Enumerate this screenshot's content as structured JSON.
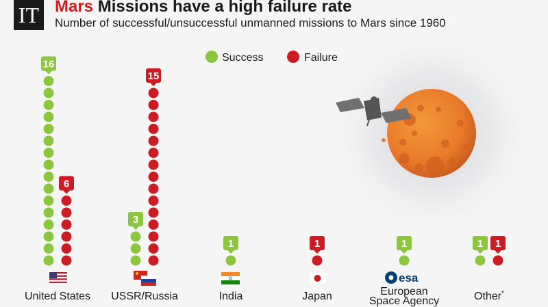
{
  "header": {
    "logo": "IT",
    "title_highlight": "Mars",
    "title_rest": " Missions have a high failure rate",
    "subtitle": "Number of successful/unsuccessful unmanned missions to Mars since 1960"
  },
  "colors": {
    "success": "#8cc63f",
    "failure": "#cc1b22",
    "title_highlight": "#d71920"
  },
  "legend": {
    "success": "Success",
    "failure": "Failure"
  },
  "chart_data": {
    "type": "dot-column",
    "title": "Mars Missions have a high failure rate",
    "subtitle": "Number of successful/unsuccessful unmanned missions to Mars since 1960",
    "categories": [
      "United States",
      "USSR/Russia",
      "India",
      "Japan",
      "European Space Agency",
      "Other*"
    ],
    "series": [
      {
        "name": "Success",
        "color": "#8cc63f",
        "values": [
          16,
          3,
          1,
          0,
          1,
          1
        ]
      },
      {
        "name": "Failure",
        "color": "#cc1b22",
        "values": [
          6,
          15,
          0,
          1,
          0,
          1
        ]
      }
    ],
    "category_icons": [
      "us-flag",
      "ussr-russia-flags",
      "india-flag",
      "japan-flag",
      "esa-logo",
      "none"
    ],
    "esa_logo_text": "esa",
    "legend_position": "top-center"
  }
}
